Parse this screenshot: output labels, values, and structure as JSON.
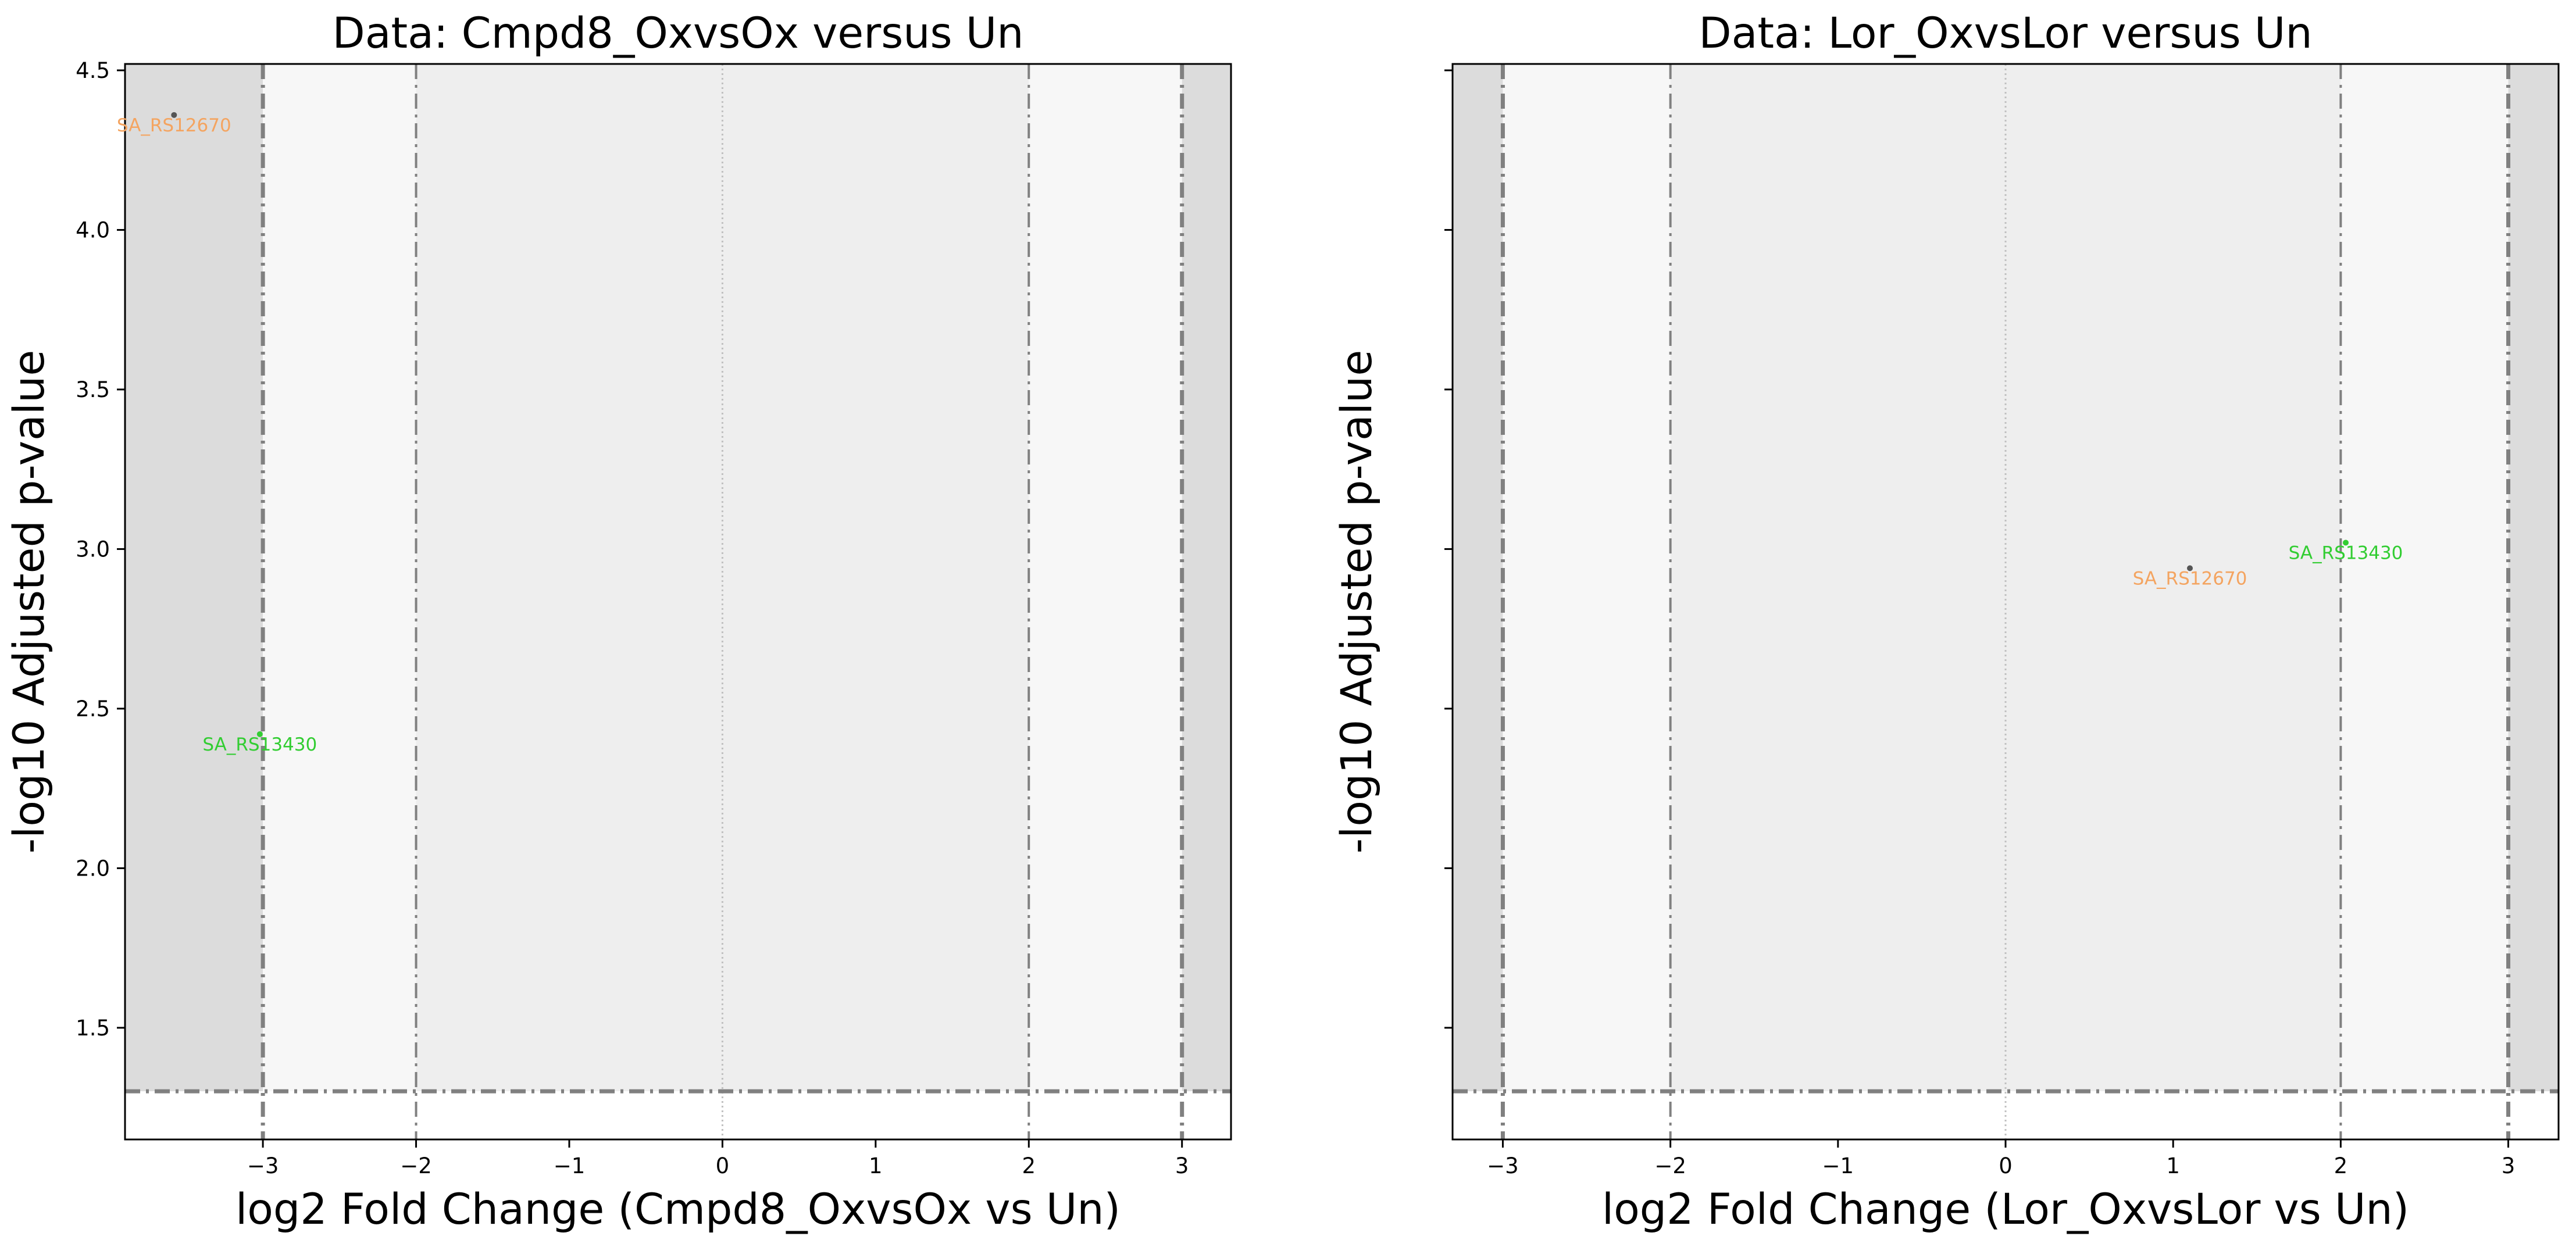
{
  "chart_data": [
    {
      "type": "scatter",
      "title": "Data: Cmpd8_OxvsOx versus Un",
      "xlabel": "log2 Fold Change (Cmpd8_OxvsOx vs Un)",
      "ylabel": "-log10 Adjusted p-value",
      "xlim": [
        -3.9,
        3.32
      ],
      "ylim": [
        1.15,
        4.52
      ],
      "xticks": [
        -3,
        -2,
        -1,
        0,
        1,
        2,
        3
      ],
      "xtick_labels": [
        "−3",
        "−2",
        "−1",
        "0",
        "1",
        "2",
        "3"
      ],
      "yticks": [
        1.5,
        2.0,
        2.5,
        3.0,
        3.5,
        4.0,
        4.5
      ],
      "ytick_labels": [
        "1.5",
        "2.0",
        "2.5",
        "3.0",
        "3.5",
        "4.0",
        "4.5"
      ],
      "show_ytick_labels": true,
      "fc_thresholds": [
        -3,
        -2,
        2,
        3
      ],
      "p_threshold": 1.301,
      "zero_line": 0,
      "points": [
        {
          "label": "SA_RS12670",
          "x": -3.58,
          "y": 4.36,
          "color": "#f4a460",
          "marker_color": "#555555"
        },
        {
          "label": "SA_RS13430",
          "x": -3.02,
          "y": 2.42,
          "color": "#32cd32",
          "marker_color": "#32cd32"
        }
      ],
      "grid": false
    },
    {
      "type": "scatter",
      "title": "Data: Lor_OxvsLor versus Un",
      "xlabel": "log2 Fold Change (Lor_OxvsLor vs Un)",
      "ylabel": "-log10 Adjusted p-value",
      "xlim": [
        -3.3,
        3.3
      ],
      "ylim": [
        1.15,
        4.52
      ],
      "xticks": [
        -3,
        -2,
        -1,
        0,
        1,
        2,
        3
      ],
      "xtick_labels": [
        "−3",
        "−2",
        "−1",
        "0",
        "1",
        "2",
        "3"
      ],
      "yticks": [
        1.5,
        2.0,
        2.5,
        3.0,
        3.5,
        4.0,
        4.5
      ],
      "ytick_labels": [
        "",
        "",
        "",
        "",
        "",
        "",
        ""
      ],
      "show_ytick_labels": false,
      "fc_thresholds": [
        -3,
        -2,
        2,
        3
      ],
      "p_threshold": 1.301,
      "zero_line": 0,
      "points": [
        {
          "label": "SA_RS12670",
          "x": 1.1,
          "y": 2.94,
          "color": "#f4a460",
          "marker_color": "#555555"
        },
        {
          "label": "SA_RS13430",
          "x": 2.03,
          "y": 3.02,
          "color": "#32cd32",
          "marker_color": "#32cd32"
        }
      ],
      "grid": false
    }
  ],
  "colors": {
    "outer_band": "#dcdcdc",
    "middle_band": "#f7f7f7",
    "inner_band": "#eeeeee",
    "threshold_line": "#808080",
    "zero_line": "#c0c0c0"
  }
}
